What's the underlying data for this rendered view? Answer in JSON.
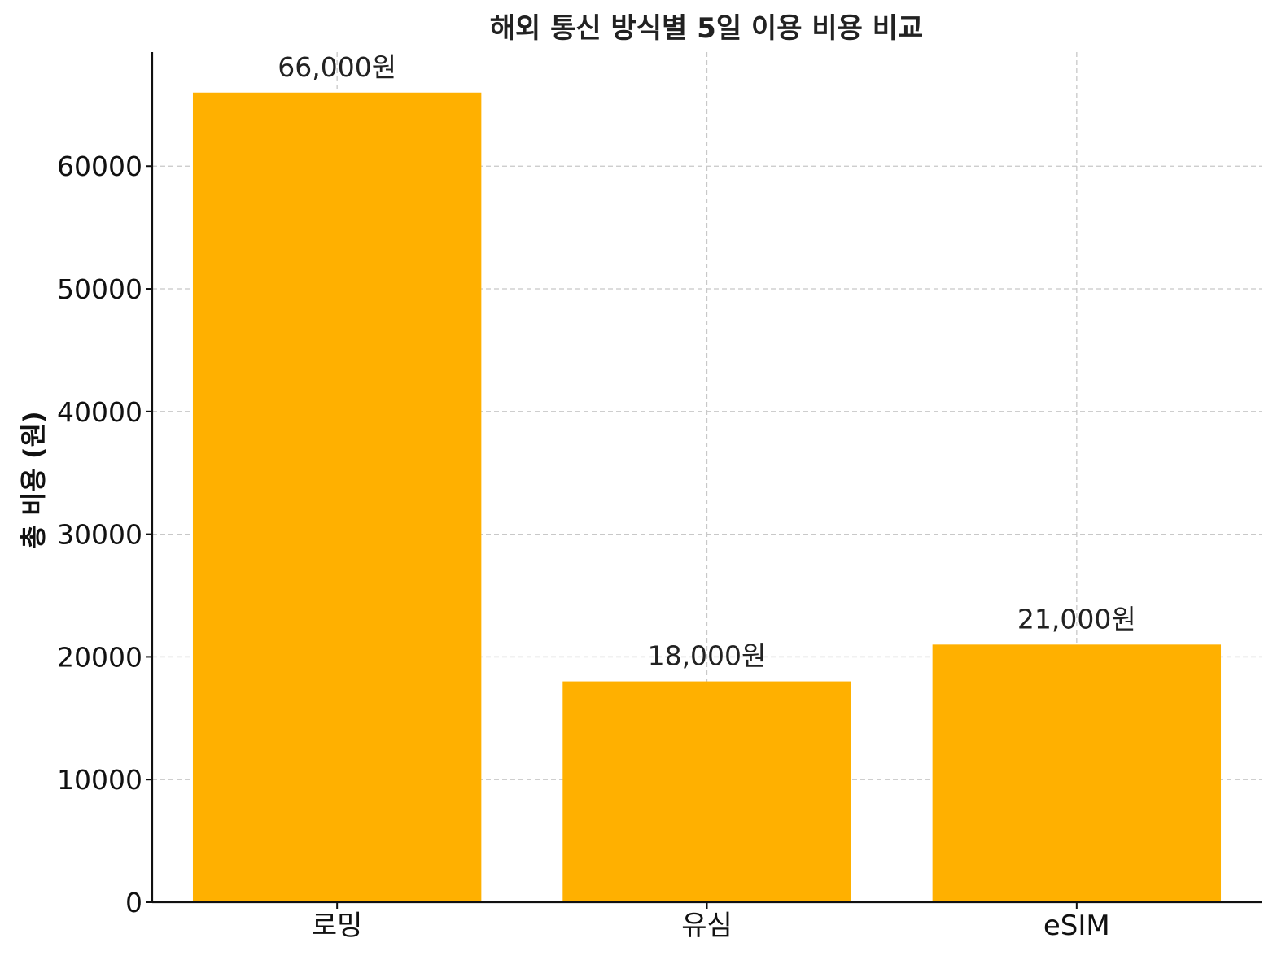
{
  "chart_data": {
    "type": "bar",
    "title": "해외 통신 방식별 5일 이용 비용 비교",
    "xlabel": "",
    "ylabel": "총 비용 (원)",
    "categories": [
      "로밍",
      "유심",
      "eSIM"
    ],
    "values": [
      66000,
      18000,
      21000
    ],
    "data_labels": [
      "66,000원",
      "18,000원",
      "21,000원"
    ],
    "yticks": [
      0,
      10000,
      20000,
      30000,
      40000,
      50000,
      60000
    ],
    "ylim": [
      0,
      69300
    ],
    "bar_color": "#FFB000",
    "grid": true,
    "legend": "none"
  }
}
